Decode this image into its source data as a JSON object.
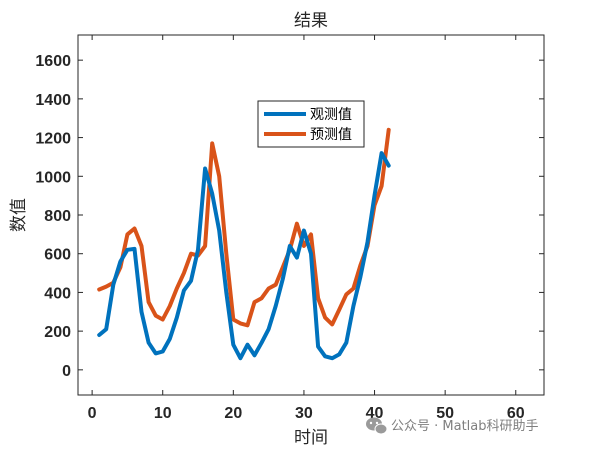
{
  "chart_data": {
    "type": "line",
    "title": "结果",
    "xlabel": "时间",
    "ylabel": "数值",
    "xlim": [
      -2,
      64
    ],
    "ylim": [
      -130,
      1730
    ],
    "xticks": [
      0,
      10,
      20,
      30,
      40,
      50,
      60
    ],
    "yticks": [
      0,
      200,
      400,
      600,
      800,
      1000,
      1200,
      1400,
      1600
    ],
    "grid": false,
    "legend_position": "inside-top-center",
    "series": [
      {
        "name": "观测值",
        "color": "#0072BD",
        "x": [
          1,
          2,
          3,
          4,
          5,
          6,
          7,
          8,
          9,
          10,
          11,
          12,
          13,
          14,
          15,
          16,
          17,
          18,
          19,
          20,
          21,
          22,
          23,
          24,
          25,
          26,
          27,
          28,
          29,
          30,
          31,
          32,
          33,
          34,
          35,
          36,
          37,
          38,
          39,
          40,
          41,
          42
        ],
        "y": [
          180,
          210,
          440,
          560,
          620,
          625,
          300,
          140,
          85,
          95,
          160,
          270,
          410,
          460,
          620,
          1040,
          910,
          720,
          400,
          130,
          60,
          130,
          75,
          140,
          210,
          330,
          470,
          640,
          580,
          720,
          600,
          120,
          70,
          60,
          80,
          140,
          330,
          480,
          660,
          900,
          1120,
          1055
        ]
      },
      {
        "name": "预测值",
        "color": "#D95319",
        "x": [
          1,
          2,
          3,
          4,
          5,
          6,
          7,
          8,
          9,
          10,
          11,
          12,
          13,
          14,
          15,
          16,
          17,
          18,
          19,
          20,
          21,
          22,
          23,
          24,
          25,
          26,
          27,
          28,
          29,
          30,
          31,
          32,
          33,
          34,
          35,
          36,
          37,
          38,
          39,
          40,
          41,
          42
        ],
        "y": [
          415,
          430,
          450,
          530,
          700,
          730,
          640,
          350,
          280,
          260,
          330,
          420,
          500,
          600,
          590,
          640,
          1170,
          1000,
          600,
          260,
          240,
          230,
          350,
          370,
          420,
          440,
          530,
          620,
          755,
          640,
          700,
          370,
          270,
          235,
          310,
          390,
          420,
          540,
          640,
          850,
          950,
          1240
        ]
      }
    ]
  },
  "watermark": {
    "text": "公众号 · Matlab科研助手"
  }
}
